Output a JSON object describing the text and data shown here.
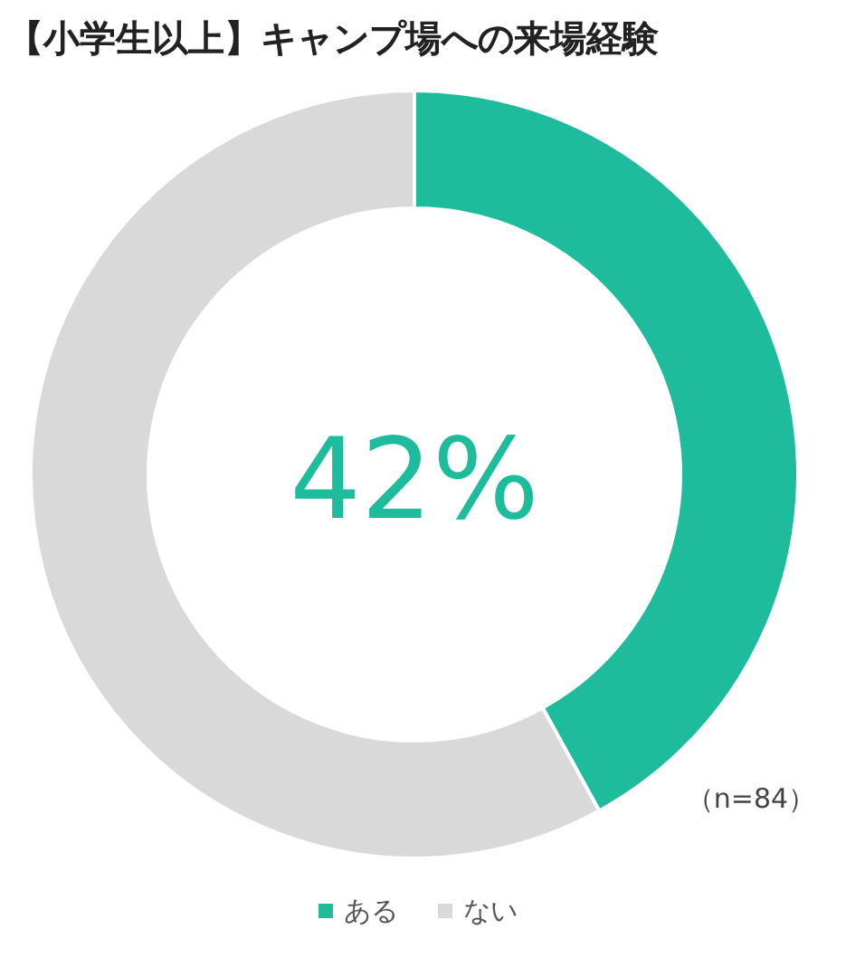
{
  "chart_data": {
    "type": "donut",
    "title": "【小学生以上】キャンプ場への来場経験",
    "categories": [
      "ある",
      "ない"
    ],
    "values": [
      42,
      58
    ],
    "colors": [
      "#1dbc9c",
      "#d9d9d9"
    ],
    "annotations": [
      "42%",
      "（n=84）"
    ],
    "legend": "bottom"
  }
}
